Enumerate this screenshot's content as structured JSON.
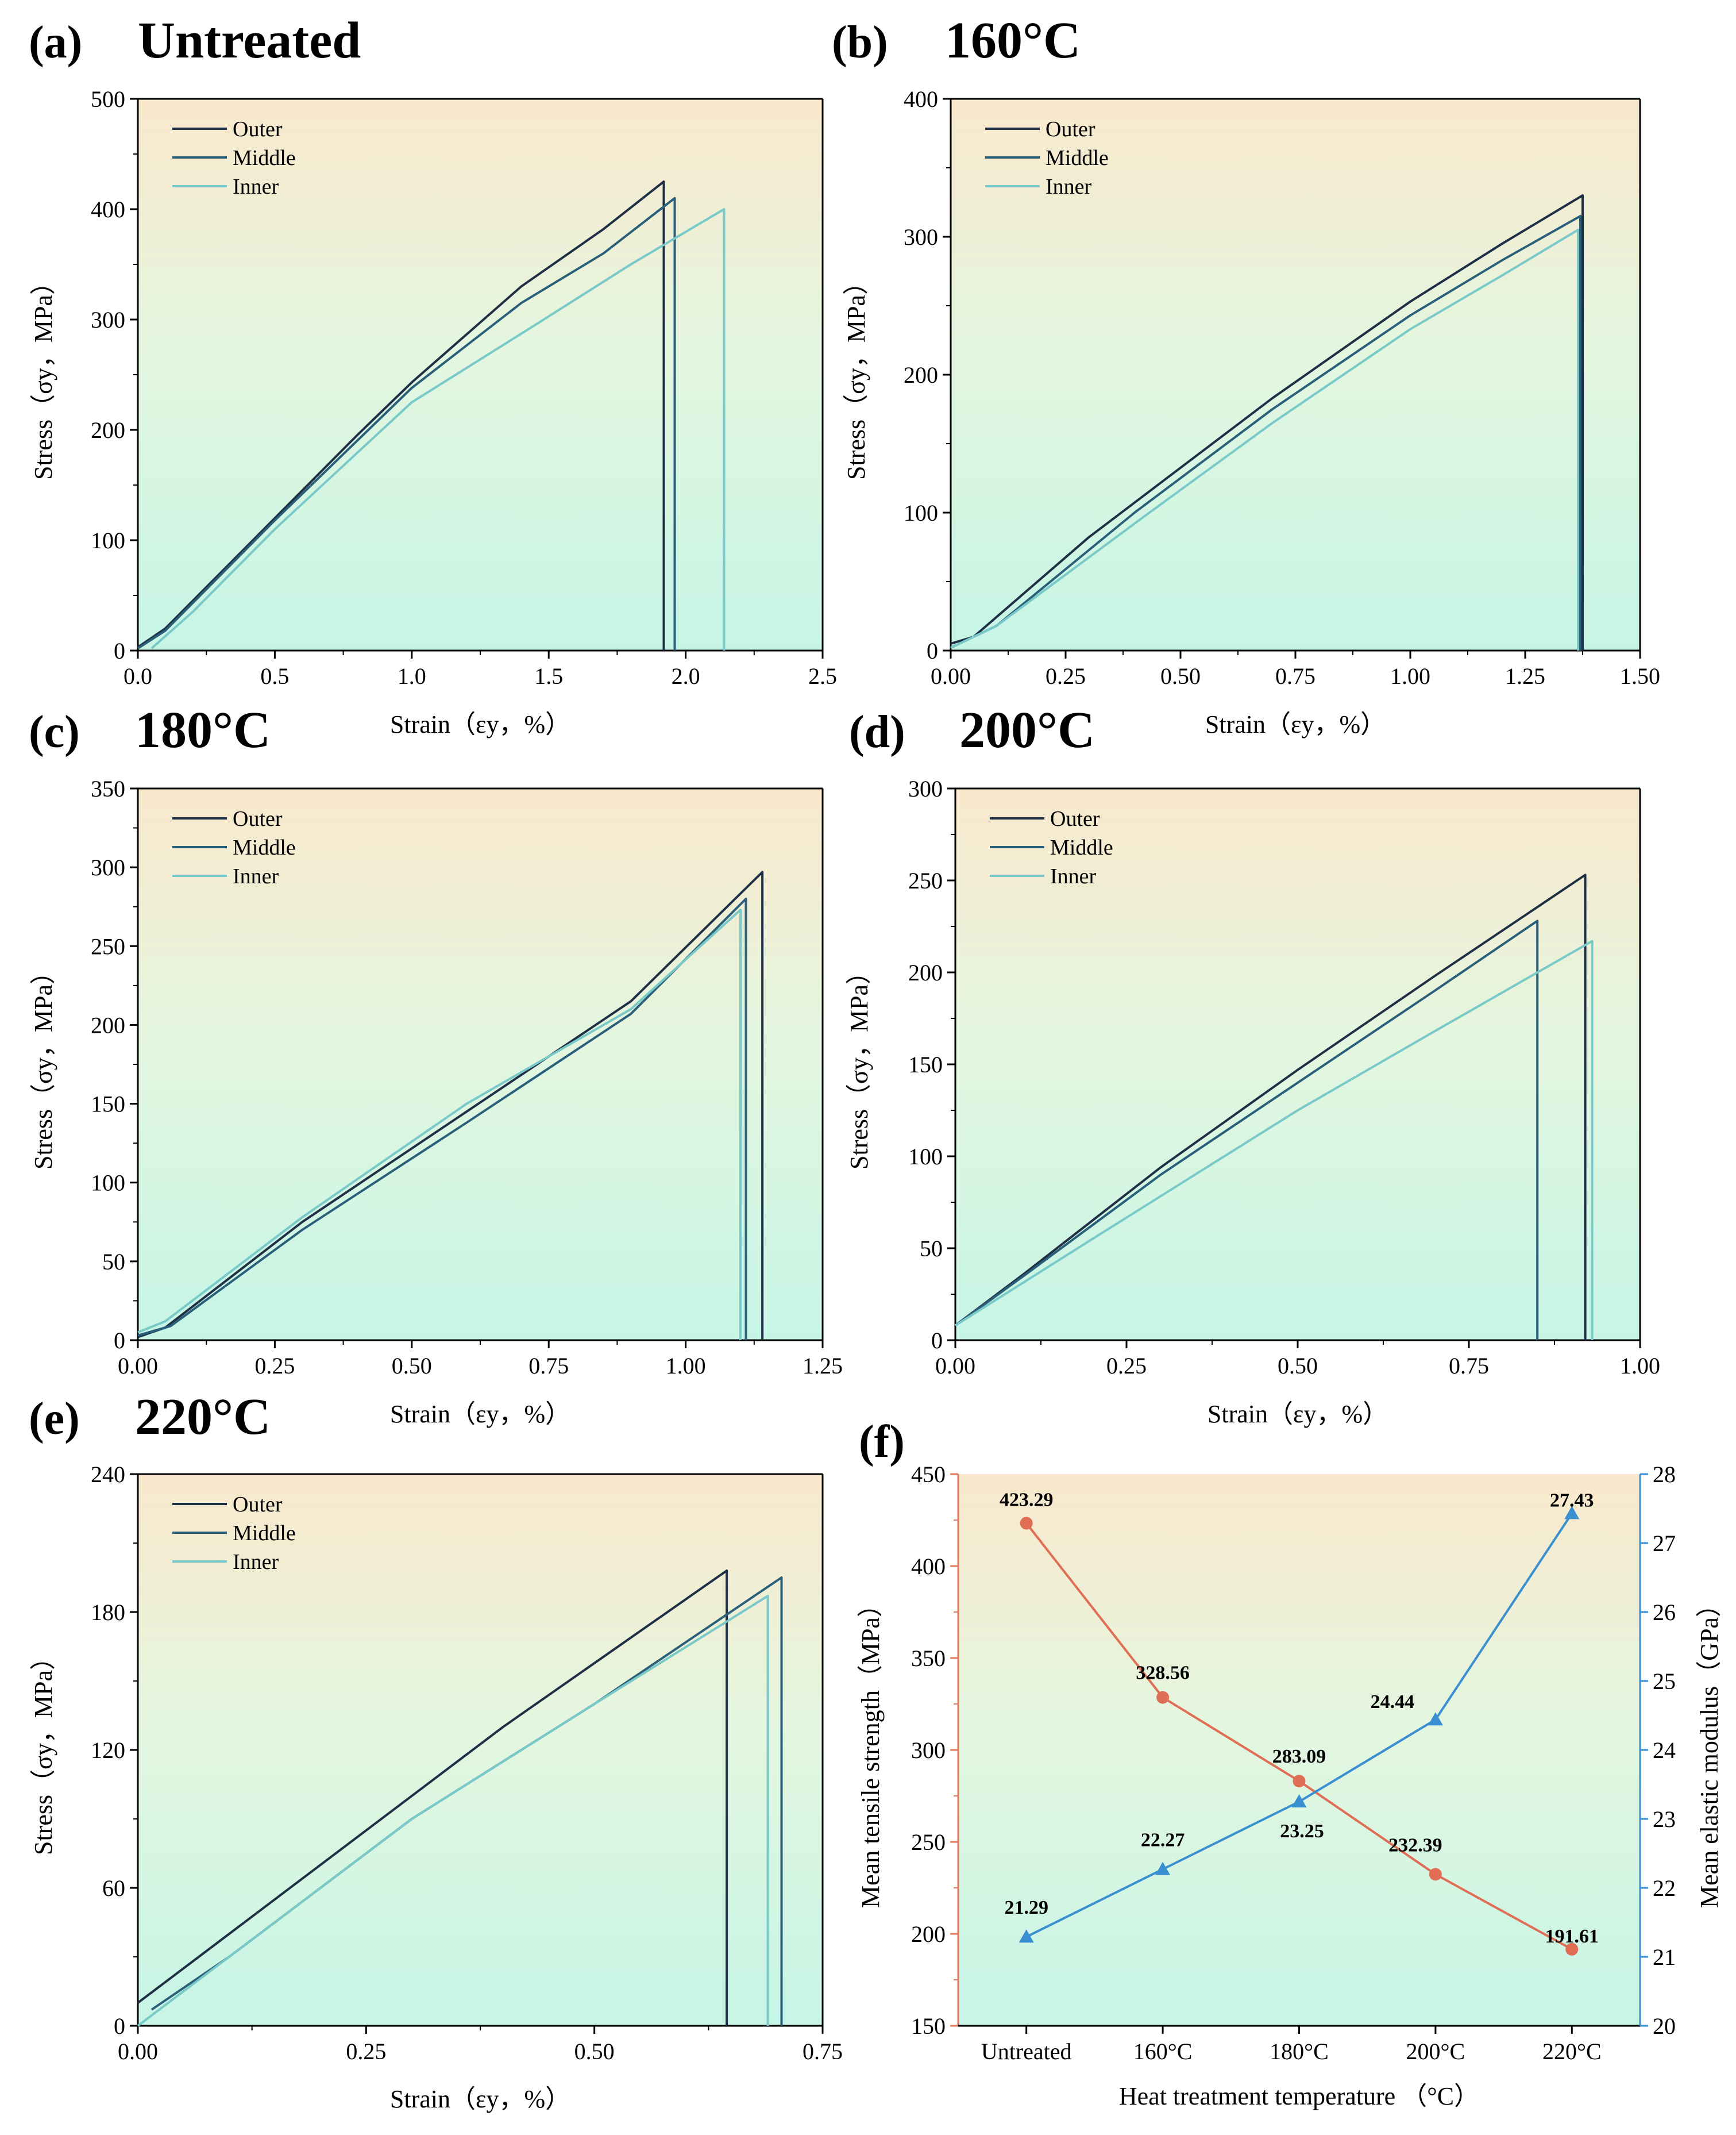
{
  "chart_data": [
    {
      "id": "a",
      "type": "line",
      "letter": "(a)",
      "title": "Untreated",
      "xlabel": "Strain（εy，%）",
      "ylabel": "Stress（σy，MPa）",
      "xlim": [
        0,
        2.5
      ],
      "ylim": [
        0,
        500
      ],
      "xticks": [
        0.0,
        0.5,
        1.0,
        1.5,
        2.0,
        2.5
      ],
      "xtick_labels": [
        "0.0",
        "0.5",
        "1.0",
        "1.5",
        "2.0",
        "2.5"
      ],
      "yticks": [
        0,
        100,
        200,
        300,
        400,
        500
      ],
      "ytick_labels": [
        "0",
        "100",
        "200",
        "300",
        "400",
        "500"
      ],
      "legend": "top-left",
      "series": [
        {
          "name": "Outer",
          "color": "#1f2f45",
          "x": [
            0.0,
            0.1,
            0.5,
            0.8,
            1.0,
            1.4,
            1.7,
            1.92,
            1.92
          ],
          "y": [
            3,
            20,
            120,
            195,
            243,
            330,
            382,
            425,
            0
          ]
        },
        {
          "name": "Middle",
          "color": "#2a5f7a",
          "x": [
            0.0,
            0.1,
            0.5,
            0.8,
            1.0,
            1.4,
            1.7,
            1.96,
            1.96
          ],
          "y": [
            2,
            18,
            118,
            190,
            238,
            315,
            360,
            410,
            0
          ]
        },
        {
          "name": "Inner",
          "color": "#79c9c9",
          "x": [
            0.05,
            0.2,
            0.5,
            1.0,
            1.45,
            1.8,
            2.14,
            2.14
          ],
          "y": [
            2,
            35,
            110,
            225,
            295,
            350,
            400,
            0
          ]
        }
      ]
    },
    {
      "id": "b",
      "type": "line",
      "letter": "(b)",
      "title": "160°C",
      "xlabel": "Strain（εy，%）",
      "ylabel": "Stress（σy，MPa）",
      "xlim": [
        0,
        1.5
      ],
      "ylim": [
        0,
        400
      ],
      "xticks": [
        0,
        0.25,
        0.5,
        0.75,
        1.0,
        1.25,
        1.5
      ],
      "xtick_labels": [
        "0.00",
        "0.25",
        "0.50",
        "0.75",
        "1.00",
        "1.25",
        "1.50"
      ],
      "yticks": [
        0,
        100,
        200,
        300,
        400
      ],
      "ytick_labels": [
        "0",
        "100",
        "200",
        "300",
        "400"
      ],
      "legend": "top-left",
      "series": [
        {
          "name": "Outer",
          "color": "#1f2f45",
          "x": [
            0.0,
            0.05,
            0.3,
            0.7,
            1.0,
            1.2,
            1.375,
            1.375
          ],
          "y": [
            5,
            10,
            82,
            183,
            253,
            295,
            330,
            0
          ]
        },
        {
          "name": "Middle",
          "color": "#2a5f7a",
          "x": [
            0.0,
            0.1,
            0.4,
            0.7,
            1.0,
            1.2,
            1.37,
            1.37
          ],
          "y": [
            2,
            18,
            100,
            175,
            243,
            283,
            315,
            0
          ]
        },
        {
          "name": "Inner",
          "color": "#79c9c9",
          "x": [
            0.0,
            0.1,
            0.42,
            0.7,
            1.0,
            1.2,
            1.365,
            1.365
          ],
          "y": [
            2,
            18,
            97,
            165,
            233,
            272,
            305,
            0
          ]
        }
      ]
    },
    {
      "id": "c",
      "type": "line",
      "letter": "(c)",
      "title": "180°C",
      "xlabel": "Strain（εy，%）",
      "ylabel": "Stress（σy，MPa）",
      "xlim": [
        0,
        1.25
      ],
      "ylim": [
        0,
        350
      ],
      "xticks": [
        0,
        0.25,
        0.5,
        0.75,
        1.0,
        1.25
      ],
      "xtick_labels": [
        "0.00",
        "0.25",
        "0.50",
        "0.75",
        "1.00",
        "1.25"
      ],
      "yticks": [
        0,
        50,
        100,
        150,
        200,
        250,
        300,
        350
      ],
      "ytick_labels": [
        "0",
        "50",
        "100",
        "150",
        "200",
        "250",
        "300",
        "350"
      ],
      "legend": "top-left",
      "series": [
        {
          "name": "Outer",
          "color": "#1f2f45",
          "x": [
            0.0,
            0.05,
            0.3,
            0.6,
            0.9,
            1.14,
            1.14
          ],
          "y": [
            2,
            8,
            75,
            145,
            215,
            297,
            0
          ]
        },
        {
          "name": "Middle",
          "color": "#2a5f7a",
          "x": [
            0.0,
            0.06,
            0.3,
            0.6,
            0.9,
            1.11,
            1.11
          ],
          "y": [
            3,
            9,
            70,
            138,
            207,
            280,
            0
          ]
        },
        {
          "name": "Inner",
          "color": "#79c9c9",
          "x": [
            0.0,
            0.05,
            0.3,
            0.6,
            0.9,
            1.1,
            1.1
          ],
          "y": [
            5,
            12,
            78,
            150,
            210,
            273,
            0
          ]
        }
      ]
    },
    {
      "id": "d",
      "type": "line",
      "letter": "(d)",
      "title": "200°C",
      "xlabel": "Strain（εy，%）",
      "ylabel": "Stress（σy，MPa）",
      "xlim": [
        0,
        1.0
      ],
      "ylim": [
        0,
        300
      ],
      "xticks": [
        0,
        0.25,
        0.5,
        0.75,
        1.0
      ],
      "xtick_labels": [
        "0.00",
        "0.25",
        "0.50",
        "0.75",
        "1.00"
      ],
      "yticks": [
        0,
        50,
        100,
        150,
        200,
        250,
        300
      ],
      "ytick_labels": [
        "0",
        "50",
        "100",
        "150",
        "200",
        "250",
        "300"
      ],
      "legend": "top-left",
      "series": [
        {
          "name": "Outer",
          "color": "#1f2f45",
          "x": [
            0.0,
            0.1,
            0.3,
            0.5,
            0.7,
            0.92,
            0.92
          ],
          "y": [
            8,
            36,
            94,
            147,
            198,
            253,
            0
          ]
        },
        {
          "name": "Middle",
          "color": "#2a5f7a",
          "x": [
            0.0,
            0.1,
            0.3,
            0.5,
            0.7,
            0.85,
            0.85
          ],
          "y": [
            8,
            35,
            90,
            140,
            190,
            228,
            0
          ]
        },
        {
          "name": "Inner",
          "color": "#79c9c9",
          "x": [
            0.0,
            0.2,
            0.5,
            0.7,
            0.93,
            0.93
          ],
          "y": [
            8,
            55,
            125,
            168,
            217,
            0
          ]
        }
      ]
    },
    {
      "id": "e",
      "type": "line",
      "letter": "(e)",
      "title": "220°C",
      "xlabel": "Strain（εy，%）",
      "ylabel": "Stress（σy，MPa）",
      "xlim": [
        0,
        0.75
      ],
      "ylim": [
        0,
        240
      ],
      "xticks": [
        0,
        0.25,
        0.5,
        0.75
      ],
      "xtick_labels": [
        "0.00",
        "0.25",
        "0.50",
        "0.75"
      ],
      "yticks": [
        0,
        60,
        120,
        180,
        240
      ],
      "ytick_labels": [
        "0",
        "60",
        "120",
        "180",
        "240"
      ],
      "legend": "top-left",
      "series": [
        {
          "name": "Outer",
          "color": "#1f2f45",
          "x": [
            0.0,
            0.05,
            0.2,
            0.4,
            0.645,
            0.645
          ],
          "y": [
            10,
            25,
            70,
            130,
            198,
            0
          ]
        },
        {
          "name": "Middle",
          "color": "#2a5f7a",
          "x": [
            0.015,
            0.1,
            0.3,
            0.5,
            0.705,
            0.705
          ],
          "y": [
            7,
            30,
            90,
            140,
            195,
            0
          ]
        },
        {
          "name": "Inner",
          "color": "#79c9c9",
          "x": [
            0.0,
            0.1,
            0.3,
            0.5,
            0.69,
            0.69
          ],
          "y": [
            0,
            30,
            90,
            140,
            187,
            0
          ]
        }
      ]
    },
    {
      "id": "f",
      "type": "line",
      "letter": "(f)",
      "title": "",
      "xlabel": "Heat treatment temperature （°C）",
      "ylabel": "Mean tensile strength（MPa）",
      "ylabel_right": "Mean elastic modulus（GPa）",
      "categories": [
        "Untreated",
        "160°C",
        "180°C",
        "200°C",
        "220°C"
      ],
      "ylim": [
        150,
        450
      ],
      "yticks": [
        150,
        200,
        250,
        300,
        350,
        400,
        450
      ],
      "ytick_labels": [
        "150",
        "200",
        "250",
        "300",
        "350",
        "400",
        "450"
      ],
      "ylim_right": [
        20,
        28
      ],
      "yticks_right": [
        20,
        21,
        22,
        23,
        24,
        25,
        26,
        27,
        28
      ],
      "ytick_labels_right": [
        "20",
        "21",
        "22",
        "23",
        "24",
        "25",
        "26",
        "27",
        "28"
      ],
      "left_color": "#e07a5f",
      "right_color": "#3a8fd0",
      "right_label_color": "#1a7a78",
      "series": [
        {
          "name": "Mean tensile strength",
          "axis": "left",
          "marker": "circle",
          "color": "#e06e55",
          "values": [
            423.29,
            328.56,
            283.09,
            232.39,
            191.61
          ],
          "labels": [
            "423.29",
            "328.56",
            "283.09",
            "232.39",
            "191.61"
          ]
        },
        {
          "name": "Mean elastic modulus",
          "axis": "right",
          "marker": "triangle",
          "color": "#3a8fd0",
          "values": [
            21.29,
            22.27,
            23.25,
            24.44,
            27.43
          ],
          "labels": [
            "21.29",
            "22.27",
            "23.25",
            "24.44",
            "27.43"
          ]
        }
      ]
    }
  ]
}
